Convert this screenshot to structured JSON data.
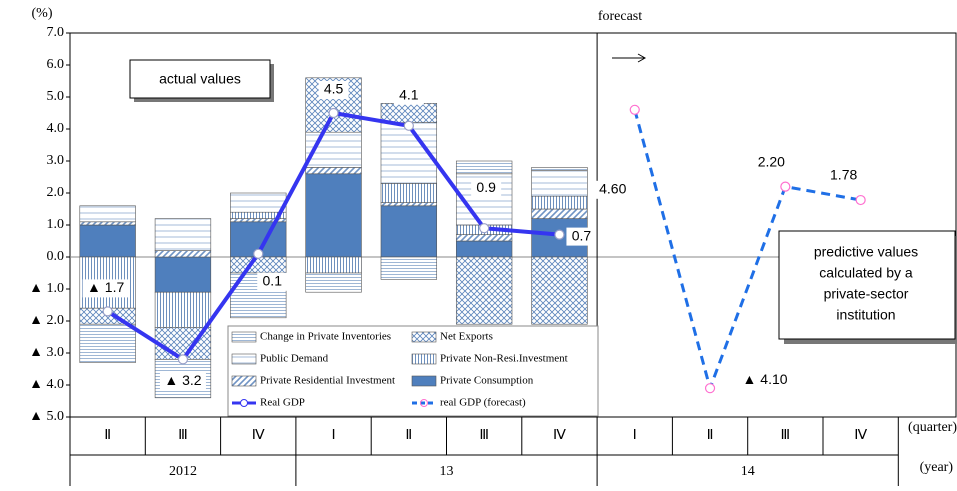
{
  "chart_data": {
    "type": "bar",
    "y_unit": "(%)",
    "annotation_forecast": "forecast",
    "annotation_actual": "actual values",
    "annotation_predictive": [
      "predictive values",
      "calculated by a",
      "private-sector",
      "institution"
    ],
    "x_label": "(quarter)",
    "year_label": "(year)",
    "categories": [
      "Ⅱ",
      "Ⅲ",
      "Ⅳ",
      "Ⅰ",
      "Ⅱ",
      "Ⅲ",
      "Ⅳ",
      "Ⅰ",
      "Ⅱ",
      "Ⅲ",
      "Ⅳ"
    ],
    "years": [
      "2012",
      "13",
      "14"
    ],
    "ylim": [
      -5,
      7
    ],
    "yticks": [
      {
        "value": -5,
        "label": "▲ 5.0"
      },
      {
        "value": -4,
        "label": "▲ 4.0"
      },
      {
        "value": -3,
        "label": "▲ 3.0"
      },
      {
        "value": -2,
        "label": "▲ 2.0"
      },
      {
        "value": -1,
        "label": "▲ 1.0"
      },
      {
        "value": 0,
        "label": "0.0"
      },
      {
        "value": 1,
        "label": "1.0"
      },
      {
        "value": 2,
        "label": "2.0"
      },
      {
        "value": 3,
        "label": "3.0"
      },
      {
        "value": 4,
        "label": "4.0"
      },
      {
        "value": 5,
        "label": "5.0"
      },
      {
        "value": 6,
        "label": "6.0"
      },
      {
        "value": 7,
        "label": "7.0"
      }
    ],
    "series": [
      {
        "name": "Change in Private Inventories",
        "color": "#7f9fc8",
        "values": [
          -1.2,
          -1.2,
          -1.4,
          -0.6,
          -0.7,
          0.4,
          0.1,
          null,
          null,
          null,
          null
        ]
      },
      {
        "name": "Net Exports",
        "color": "#5b84bb",
        "values": [
          -0.5,
          -1.0,
          -0.5,
          1.7,
          0.6,
          -2.1,
          -2.1,
          null,
          null,
          null,
          null
        ]
      },
      {
        "name": "Public Demand",
        "color": "#8eaad0",
        "values": [
          0.5,
          1.0,
          0.6,
          1.1,
          1.9,
          1.6,
          0.8,
          null,
          null,
          null,
          null
        ]
      },
      {
        "name": "Private Non-Resi.Investment",
        "color": "#4a74ad",
        "values": [
          -1.6,
          -1.1,
          0.2,
          -0.5,
          0.6,
          0.3,
          0.4,
          null,
          null,
          null,
          null
        ]
      },
      {
        "name": "Private Residential Investment",
        "color": "#6f93c4",
        "values": [
          0.1,
          0.2,
          0.1,
          0.2,
          0.1,
          0.2,
          0.3,
          null,
          null,
          null,
          null
        ]
      },
      {
        "name": "Private Consumption",
        "color": "#4f7fbd",
        "values": [
          1.0,
          -1.1,
          1.1,
          2.6,
          1.6,
          0.5,
          1.2,
          null,
          null,
          null,
          null
        ]
      },
      {
        "name": "Real GDP",
        "type": "line",
        "color": "#3535f0",
        "marker": "#ffffff",
        "values": [
          -1.7,
          -3.2,
          0.1,
          4.5,
          4.1,
          0.9,
          0.7,
          null,
          null,
          null,
          null
        ],
        "value_labels": [
          "▲ 1.7",
          "▲ 3.2",
          "0.1",
          "4.5",
          "4.1",
          "0.9",
          "0.7",
          null,
          null,
          null,
          null
        ]
      },
      {
        "name": "real GDP (forecast)",
        "type": "line",
        "dashed": true,
        "color": "#1f6fe6",
        "marker": "#ff70d0",
        "values": [
          null,
          null,
          null,
          null,
          null,
          null,
          null,
          4.6,
          -4.1,
          2.2,
          1.78
        ],
        "value_labels": [
          null,
          null,
          null,
          null,
          null,
          null,
          null,
          "4.60",
          "▲ 4.10",
          "2.20",
          "1.78"
        ]
      }
    ]
  }
}
